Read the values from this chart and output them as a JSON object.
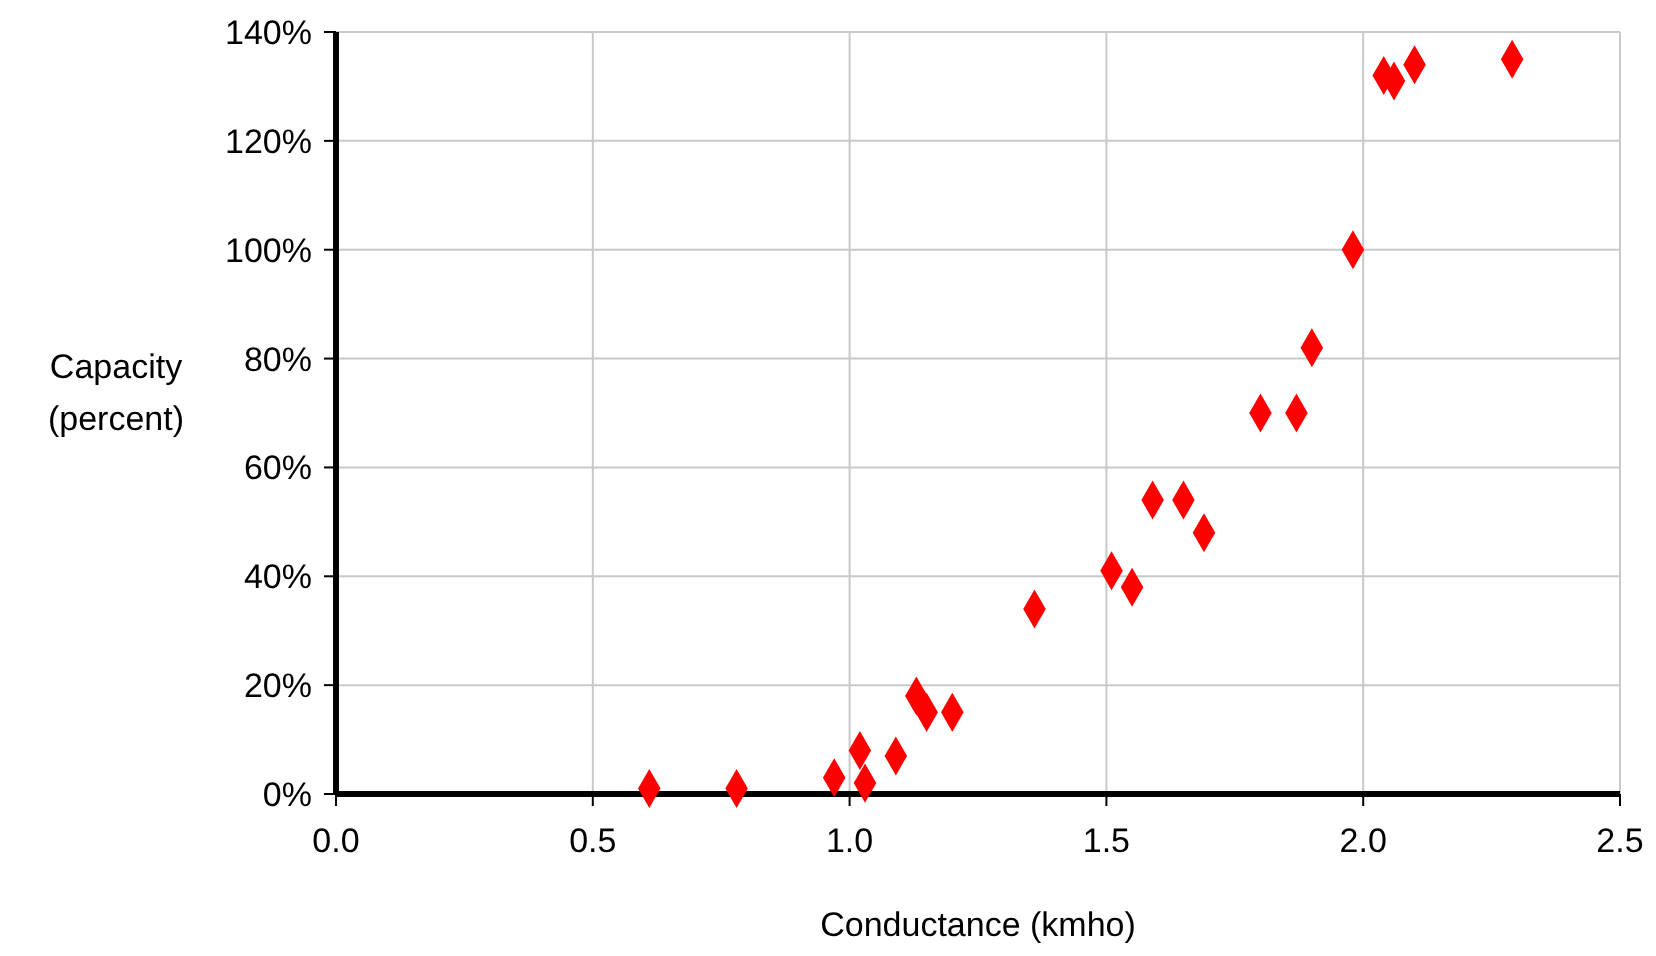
{
  "chart_data": {
    "type": "scatter",
    "xlabel": "Conductance (kmho)",
    "ylabel": "Capacity\n(percent)",
    "x": [
      0.61,
      0.78,
      0.97,
      1.02,
      1.03,
      1.09,
      1.13,
      1.15,
      1.2,
      1.36,
      1.51,
      1.55,
      1.59,
      1.65,
      1.69,
      1.8,
      1.87,
      1.9,
      1.98,
      2.04,
      2.06,
      2.1,
      2.29
    ],
    "series": [
      {
        "color": "#ff0000",
        "values": [
          1,
          1,
          3,
          8,
          2,
          7,
          18,
          15,
          15,
          34,
          41,
          38,
          54,
          54,
          48,
          70,
          70,
          82,
          100,
          132,
          131,
          134,
          135
        ]
      }
    ],
    "xlim": [
      0,
      2.5
    ],
    "xticks": [
      {
        "value": 0,
        "label": "0.0"
      },
      {
        "value": 0.5,
        "label": "0.5"
      },
      {
        "value": 1,
        "label": "1.0"
      },
      {
        "value": 1.5,
        "label": "1.5"
      },
      {
        "value": 2,
        "label": "2.0"
      },
      {
        "value": 2.5,
        "label": "2.5"
      }
    ],
    "ylim": [
      0,
      140
    ],
    "yticks": [
      {
        "value": 0,
        "label": "0%"
      },
      {
        "value": 20,
        "label": "20%"
      },
      {
        "value": 40,
        "label": "40%"
      },
      {
        "value": 60,
        "label": "60%"
      },
      {
        "value": 80,
        "label": "80%"
      },
      {
        "value": 100,
        "label": "100%"
      },
      {
        "value": 120,
        "label": "120%"
      },
      {
        "value": 140,
        "label": "140%"
      }
    ],
    "grid": true,
    "marker": "diamond"
  }
}
